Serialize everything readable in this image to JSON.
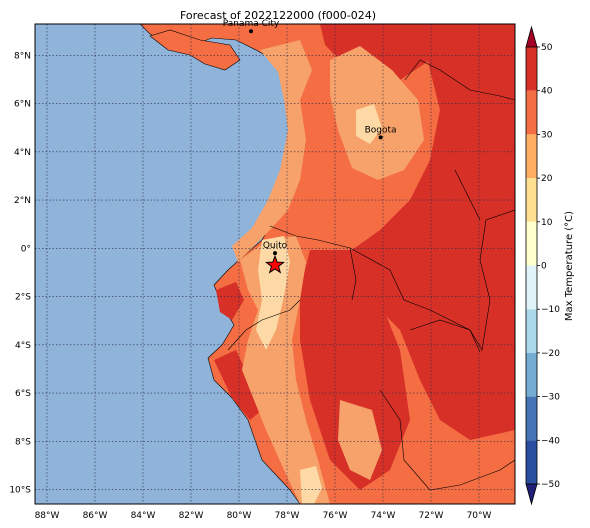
{
  "title": "Forecast of 2022122000 (f000-024)",
  "map": {
    "lon_range": [
      -88.5,
      -68.5
    ],
    "lat_range": [
      -10.6,
      9.3
    ],
    "lon_ticks": [
      {
        "lon": -88,
        "label": "88°W"
      },
      {
        "lon": -86,
        "label": "86°W"
      },
      {
        "lon": -84,
        "label": "84°W"
      },
      {
        "lon": -82,
        "label": "82°W"
      },
      {
        "lon": -80,
        "label": "80°W"
      },
      {
        "lon": -78,
        "label": "78°W"
      },
      {
        "lon": -76,
        "label": "76°W"
      },
      {
        "lon": -74,
        "label": "74°W"
      },
      {
        "lon": -72,
        "label": "72°W"
      },
      {
        "lon": -70,
        "label": "70°W"
      }
    ],
    "lat_ticks": [
      {
        "lat": 8,
        "label": "8°N"
      },
      {
        "lat": 6,
        "label": "6°N"
      },
      {
        "lat": 4,
        "label": "4°N"
      },
      {
        "lat": 2,
        "label": "2°N"
      },
      {
        "lat": 0,
        "label": "0°"
      },
      {
        "lat": -2,
        "label": "2°S"
      },
      {
        "lat": -4,
        "label": "4°S"
      },
      {
        "lat": -6,
        "label": "6°S"
      },
      {
        "lat": -8,
        "label": "8°S"
      },
      {
        "lat": -10,
        "label": "10°S"
      }
    ],
    "cities": [
      {
        "name": "Panama City",
        "lon": -79.5,
        "lat": 9.0
      },
      {
        "name": "Bogota",
        "lon": -74.1,
        "lat": 4.6
      },
      {
        "name": "Quito",
        "lon": -78.5,
        "lat": -0.2
      }
    ],
    "marker": {
      "name": "forecast-point",
      "lon": -78.5,
      "lat": -0.7
    },
    "colors": {
      "ocean": "#8fb3d9",
      "c10_20": "#fdd9a6",
      "c20_30": "#f6a26a",
      "c30_40": "#f46d43",
      "c40_50": "#d73027",
      "marker": "#ff0000"
    }
  },
  "colorbar": {
    "label": "Max Temperature (°C)",
    "ticks": [
      "50",
      "40",
      "30",
      "20",
      "10",
      "0",
      "−10",
      "−20",
      "−30",
      "−40",
      "−50"
    ],
    "colors": [
      "#1f1f7a",
      "#2b4fa0",
      "#4575b4",
      "#74add1",
      "#abd9e9",
      "#e0f3f8",
      "#ffffcc",
      "#fee090",
      "#fdae61",
      "#f46d43",
      "#d73027",
      "#a50026"
    ],
    "extend": "both"
  }
}
